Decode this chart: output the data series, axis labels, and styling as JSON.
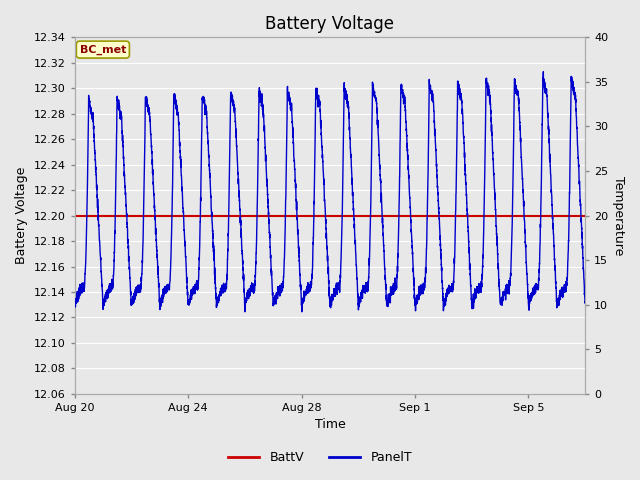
{
  "title": "Battery Voltage",
  "xlabel": "Time",
  "ylabel_left": "Battery Voltage",
  "ylabel_right": "Temperature",
  "annotation_text": "BC_met",
  "ylim_left": [
    12.06,
    12.34
  ],
  "ylim_right": [
    0,
    40
  ],
  "batt_v_value": 12.2,
  "batt_color": "#cc0000",
  "panel_color": "#0000cc",
  "fig_facecolor": "#e8e8e8",
  "plot_facecolor": "#e8e8e8",
  "x_tick_labels": [
    "Aug 20",
    "Aug 24",
    "Aug 28",
    "Sep 1",
    "Sep 5"
  ],
  "x_tick_positions": [
    0,
    4,
    8,
    12,
    16
  ],
  "legend_labels": [
    "BattV",
    "PanelT"
  ],
  "title_fontsize": 12,
  "axis_label_fontsize": 9,
  "tick_fontsize": 8,
  "n_days": 18
}
